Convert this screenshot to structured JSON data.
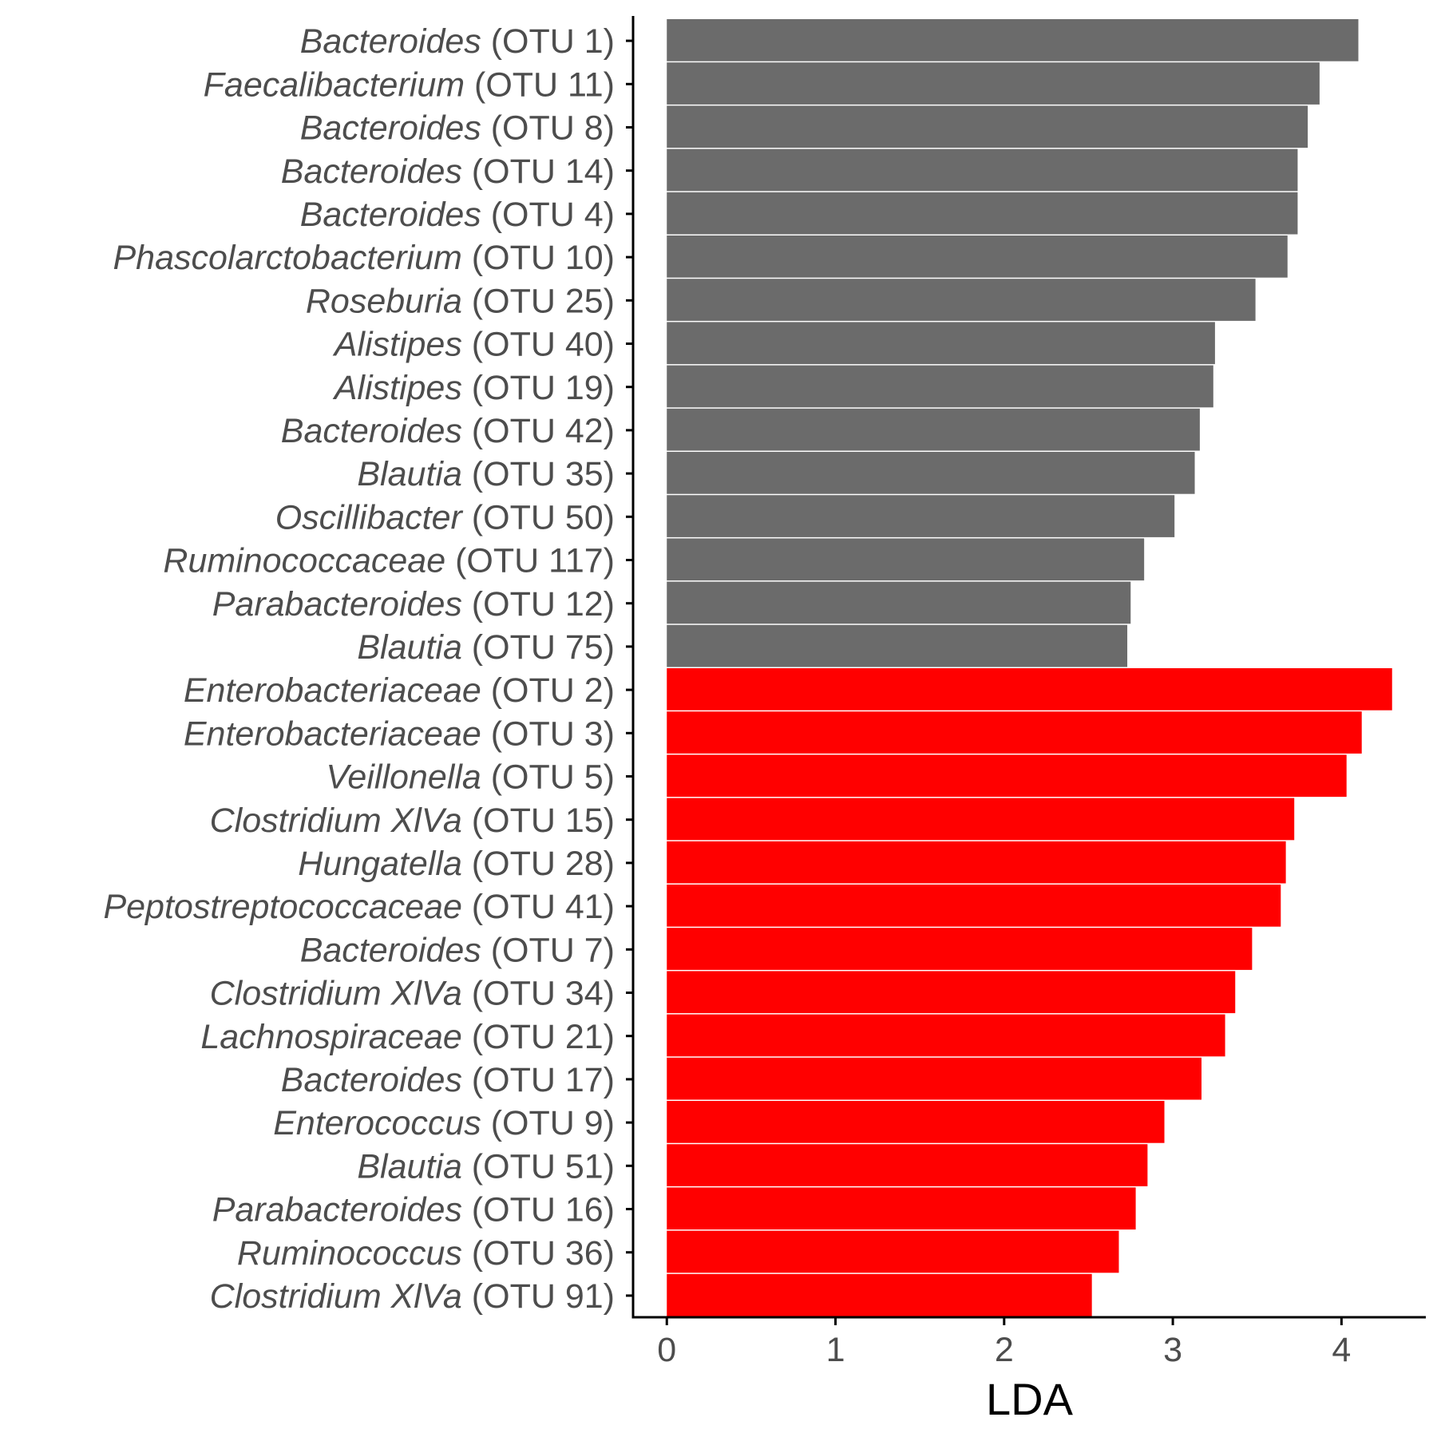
{
  "chart_data": {
    "type": "bar",
    "orientation": "horizontal",
    "xlabel": "LDA",
    "ylabel": "",
    "xlim": [
      -0.2,
      4.5
    ],
    "xticks": [
      0,
      1,
      2,
      3,
      4
    ],
    "grid": false,
    "legend": "none",
    "colors": {
      "group1": "#6b6b6b",
      "group2": "#ff0000",
      "axis": "#000000",
      "label": "#4d4d4d"
    },
    "bars": [
      {
        "genus": "Bacteroides",
        "otu": "(OTU 1)",
        "value": 4.1,
        "group": "group1"
      },
      {
        "genus": "Faecalibacterium",
        "otu": "(OTU 11)",
        "value": 3.87,
        "group": "group1"
      },
      {
        "genus": "Bacteroides",
        "otu": "(OTU 8)",
        "value": 3.8,
        "group": "group1"
      },
      {
        "genus": "Bacteroides",
        "otu": "(OTU 14)",
        "value": 3.74,
        "group": "group1"
      },
      {
        "genus": "Bacteroides",
        "otu": "(OTU 4)",
        "value": 3.74,
        "group": "group1"
      },
      {
        "genus": "Phascolarctobacterium",
        "otu": "(OTU 10)",
        "value": 3.68,
        "group": "group1"
      },
      {
        "genus": "Roseburia",
        "otu": "(OTU 25)",
        "value": 3.49,
        "group": "group1"
      },
      {
        "genus": "Alistipes",
        "otu": "(OTU 40)",
        "value": 3.25,
        "group": "group1"
      },
      {
        "genus": "Alistipes",
        "otu": "(OTU 19)",
        "value": 3.24,
        "group": "group1"
      },
      {
        "genus": "Bacteroides",
        "otu": "(OTU 42)",
        "value": 3.16,
        "group": "group1"
      },
      {
        "genus": "Blautia",
        "otu": "(OTU 35)",
        "value": 3.13,
        "group": "group1"
      },
      {
        "genus": "Oscillibacter",
        "otu": "(OTU 50)",
        "value": 3.01,
        "group": "group1"
      },
      {
        "genus": "Ruminococcaceae",
        "otu": "(OTU 117)",
        "value": 2.83,
        "group": "group1"
      },
      {
        "genus": "Parabacteroides",
        "otu": "(OTU 12)",
        "value": 2.75,
        "group": "group1"
      },
      {
        "genus": "Blautia",
        "otu": "(OTU 75)",
        "value": 2.73,
        "group": "group1"
      },
      {
        "genus": "Enterobacteriaceae",
        "otu": "(OTU 2)",
        "value": 4.3,
        "group": "group2"
      },
      {
        "genus": "Enterobacteriaceae",
        "otu": "(OTU 3)",
        "value": 4.12,
        "group": "group2"
      },
      {
        "genus": "Veillonella",
        "otu": "(OTU 5)",
        "value": 4.03,
        "group": "group2"
      },
      {
        "genus": "Clostridium XlVa",
        "otu": "(OTU 15)",
        "value": 3.72,
        "group": "group2"
      },
      {
        "genus": "Hungatella",
        "otu": "(OTU 28)",
        "value": 3.67,
        "group": "group2"
      },
      {
        "genus": "Peptostreptococcaceae",
        "otu": "(OTU 41)",
        "value": 3.64,
        "group": "group2"
      },
      {
        "genus": "Bacteroides",
        "otu": "(OTU 7)",
        "value": 3.47,
        "group": "group2"
      },
      {
        "genus": "Clostridium XlVa",
        "otu": "(OTU 34)",
        "value": 3.37,
        "group": "group2"
      },
      {
        "genus": "Lachnospiraceae",
        "otu": "(OTU 21)",
        "value": 3.31,
        "group": "group2"
      },
      {
        "genus": "Bacteroides",
        "otu": "(OTU 17)",
        "value": 3.17,
        "group": "group2"
      },
      {
        "genus": "Enterococcus",
        "otu": "(OTU 9)",
        "value": 2.95,
        "group": "group2"
      },
      {
        "genus": "Blautia",
        "otu": "(OTU 51)",
        "value": 2.85,
        "group": "group2"
      },
      {
        "genus": "Parabacteroides",
        "otu": "(OTU 16)",
        "value": 2.78,
        "group": "group2"
      },
      {
        "genus": "Ruminococcus",
        "otu": "(OTU 36)",
        "value": 2.68,
        "group": "group2"
      },
      {
        "genus": "Clostridium XlVa",
        "otu": "(OTU 91)",
        "value": 2.52,
        "group": "group2"
      }
    ]
  }
}
